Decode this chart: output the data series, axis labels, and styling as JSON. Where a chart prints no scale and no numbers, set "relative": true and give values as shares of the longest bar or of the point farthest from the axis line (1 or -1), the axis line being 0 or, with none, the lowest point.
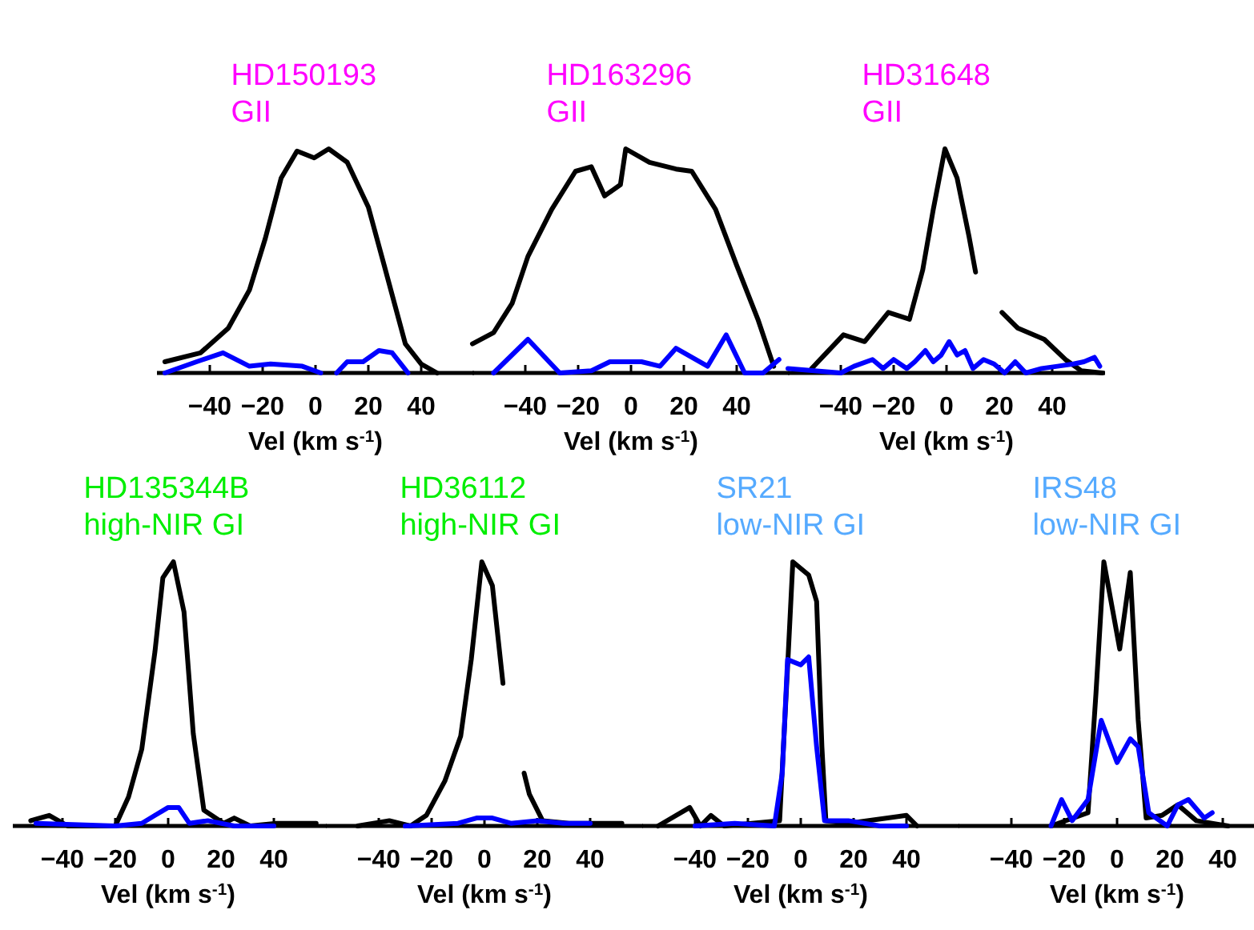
{
  "chart_data": [
    {
      "type": "line",
      "title": "HD150193",
      "subtitle": "GII",
      "xlabel": "Vel (km s$^{-1}$)",
      "relative": true,
      "xlim": [
        -60,
        60
      ],
      "xticks": [
        -40,
        -20,
        0,
        20,
        40
      ],
      "series": [
        {
          "color": "#000000",
          "x": [
            -57,
            -43.5,
            -33,
            -25,
            -19,
            -13,
            -7,
            -0.5,
            5,
            12,
            20,
            26,
            34,
            40,
            46
          ],
          "values": [
            0.05,
            0.09,
            0.2,
            0.37,
            0.6,
            0.87,
            0.99,
            0.96,
            1.0,
            0.94,
            0.74,
            0.48,
            0.13,
            0.04,
            0
          ]
        },
        {
          "color": "#0000ff",
          "x": [
            -57,
            -45,
            -35,
            -25,
            -17,
            -5,
            2,
            5,
            8,
            12,
            18,
            24,
            29,
            35
          ],
          "values": [
            0,
            0.05,
            0.09,
            0.03,
            0.04,
            0.03,
            0,
            null,
            0,
            0.05,
            0.05,
            0.1,
            0.09,
            0
          ]
        }
      ]
    },
    {
      "type": "line",
      "title": "HD163296",
      "subtitle": "GII",
      "xlabel": "Vel (km s$^{-1}$)",
      "relative": true,
      "xlim": [
        -60,
        60
      ],
      "xticks": [
        -40,
        -20,
        0,
        20,
        40
      ],
      "series": [
        {
          "color": "#000000",
          "x": [
            -60,
            -52,
            -45,
            -39,
            -30,
            -21,
            -15,
            -10,
            -4,
            -2,
            7,
            17,
            23,
            32,
            40,
            48,
            54
          ],
          "values": [
            0.13,
            0.18,
            0.31,
            0.52,
            0.73,
            0.9,
            0.92,
            0.79,
            0.84,
            1.0,
            0.94,
            0.91,
            0.9,
            0.73,
            0.48,
            0.24,
            0.03
          ]
        },
        {
          "color": "#0000ff",
          "x": [
            -52,
            -39,
            -27,
            -15,
            -8,
            4,
            11,
            17,
            29,
            36,
            43,
            50,
            56
          ],
          "values": [
            0,
            0.15,
            0,
            0.01,
            0.05,
            0.05,
            0.03,
            0.11,
            0.03,
            0.17,
            0,
            0,
            0.06
          ]
        }
      ]
    },
    {
      "type": "line",
      "title": "HD31648",
      "subtitle": "GII",
      "xlabel": "Vel (km s$^{-1}$)",
      "relative": true,
      "xlim": [
        -60,
        60
      ],
      "xticks": [
        -40,
        -20,
        0,
        20,
        40
      ],
      "series": [
        {
          "color": "#000000",
          "x": [
            -51,
            -43,
            -39,
            -31,
            -22,
            -14,
            -9,
            -5,
            -0.6,
            4,
            8.5,
            11,
            14,
            21,
            27,
            37,
            45,
            51,
            59
          ],
          "values": [
            0.02,
            0.12,
            0.17,
            0.14,
            0.27,
            0.24,
            0.46,
            0.73,
            1.0,
            0.87,
            0.61,
            0.45,
            null,
            0.27,
            0.2,
            0.15,
            0.06,
            0.01,
            0
          ]
        },
        {
          "color": "#0000ff",
          "x": [
            -60,
            -50,
            -40,
            -35,
            -28,
            -24,
            -20,
            -15,
            -12,
            -8,
            -5,
            -2,
            1,
            4,
            7,
            10,
            14,
            18,
            22,
            26,
            30,
            36,
            42,
            48,
            52,
            56,
            58
          ],
          "values": [
            0.02,
            0.01,
            0,
            0.03,
            0.06,
            0.02,
            0.06,
            0.02,
            0.05,
            0.1,
            0.05,
            0.08,
            0.14,
            0.08,
            0.1,
            0.02,
            0.06,
            0.04,
            0,
            0.05,
            0,
            0.02,
            0.03,
            0.04,
            0.05,
            0.07,
            0.03
          ]
        }
      ]
    },
    {
      "type": "line",
      "title": "HD135344B",
      "subtitle": "high-NIR GI",
      "xlabel": "Vel (km s$^{-1}$)",
      "relative": true,
      "xlim": [
        -60,
        60
      ],
      "xticks": [
        -40,
        -20,
        0,
        20,
        40
      ],
      "series": [
        {
          "color": "#000000",
          "x": [
            -52,
            -45,
            -38,
            -20,
            -15,
            -10,
            -5,
            -2,
            2,
            6,
            9.5,
            13.5,
            21,
            25,
            31,
            41,
            56
          ],
          "values": [
            0.02,
            0.04,
            0,
            0,
            0.11,
            0.29,
            0.66,
            0.94,
            1.0,
            0.81,
            0.35,
            0.06,
            0.01,
            0.03,
            0,
            0.01,
            0.01
          ]
        },
        {
          "color": "#0000ff",
          "x": [
            -50,
            -20,
            -10,
            -5,
            0,
            4,
            8,
            15,
            25,
            40
          ],
          "values": [
            0.01,
            0,
            0.01,
            0.04,
            0.07,
            0.07,
            0.01,
            0.02,
            0,
            0
          ]
        }
      ]
    },
    {
      "type": "line",
      "title": "HD36112",
      "subtitle": "high-NIR GI",
      "xlabel": "Vel (km s$^{-1}$)",
      "relative": true,
      "xlim": [
        -60,
        60
      ],
      "xticks": [
        -40,
        -20,
        0,
        20,
        40
      ],
      "series": [
        {
          "color": "#000000",
          "x": [
            -48,
            -36,
            -28,
            -22,
            -15,
            -9,
            -5,
            -1,
            3,
            7,
            10,
            15,
            17,
            22,
            32,
            52
          ],
          "values": [
            0,
            0.02,
            0,
            0.04,
            0.17,
            0.34,
            0.63,
            1.0,
            0.91,
            0.54,
            null,
            0.2,
            0.12,
            0.02,
            0.01,
            0.01
          ]
        },
        {
          "color": "#0000ff",
          "x": [
            -30,
            -10,
            -3,
            3,
            10,
            20,
            30,
            40
          ],
          "values": [
            0,
            0.01,
            0.03,
            0.03,
            0.01,
            0.02,
            0.01,
            0.01
          ]
        }
      ]
    },
    {
      "type": "line",
      "title": "SR21",
      "subtitle": "low-NIR GI",
      "xlabel": "Vel (km s$^{-1}$)",
      "relative": true,
      "xlim": [
        -60,
        60
      ],
      "xticks": [
        -40,
        -20,
        0,
        20,
        40
      ],
      "series": [
        {
          "color": "#000000",
          "x": [
            -54,
            -42,
            -38,
            -34,
            -29,
            -8,
            -5,
            -3,
            3,
            6,
            8,
            9.5,
            18,
            40,
            44
          ],
          "values": [
            0,
            0.07,
            0,
            0.04,
            0,
            0.02,
            0.6,
            1.0,
            0.95,
            0.85,
            0.3,
            0.02,
            0.01,
            0.04,
            0
          ]
        },
        {
          "color": "#0000ff",
          "x": [
            -40,
            -25,
            -10,
            -7,
            -5,
            0,
            3,
            6,
            9,
            18,
            30,
            40
          ],
          "values": [
            0,
            0.01,
            0,
            0.2,
            0.63,
            0.61,
            0.64,
            0.3,
            0.02,
            0.02,
            0,
            0
          ]
        }
      ]
    },
    {
      "type": "line",
      "title": "IRS48",
      "subtitle": "low-NIR GI",
      "xlabel": "Vel (km s$^{-1}$)",
      "relative": true,
      "xlim": [
        -60,
        60
      ],
      "xticks": [
        -40,
        -20,
        0,
        20,
        40
      ],
      "series": [
        {
          "color": "#000000",
          "x": [
            -25,
            -11,
            -8,
            -5,
            1,
            5,
            8,
            11,
            17,
            23,
            30,
            42
          ],
          "values": [
            0,
            0.05,
            0.5,
            1.0,
            0.67,
            0.96,
            0.4,
            0.03,
            0.04,
            0.08,
            0.02,
            0
          ]
        },
        {
          "color": "#0000ff",
          "x": [
            -25,
            -21,
            -17,
            -11,
            -6,
            0,
            5,
            8,
            12,
            19,
            23,
            27,
            33,
            36
          ],
          "values": [
            0,
            0.1,
            0.02,
            0.1,
            0.4,
            0.24,
            0.33,
            0.3,
            0.05,
            0,
            0.08,
            0.1,
            0.03,
            0.05
          ]
        }
      ]
    }
  ]
}
